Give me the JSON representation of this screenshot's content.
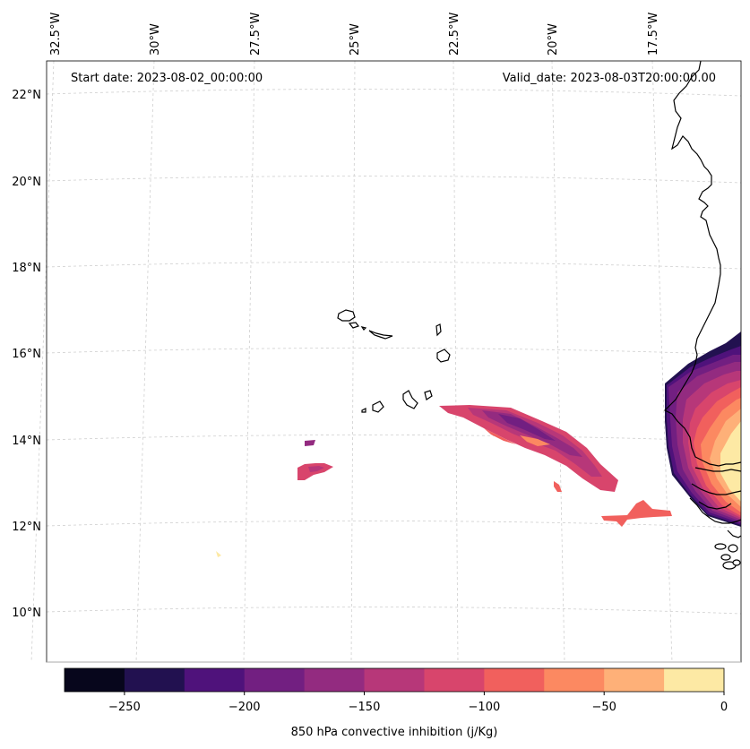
{
  "header": {
    "start_date": "Start date: 2023-08-02_00:00:00",
    "valid_date": "Valid_date: 2023-08-03T20:00:00.00"
  },
  "lon_labels": [
    "32.5°W",
    "30°W",
    "27.5°W",
    "25°W",
    "22.5°W",
    "20°W",
    "17.5°W"
  ],
  "lat_labels": [
    "22°N",
    "20°N",
    "18°N",
    "16°N",
    "14°N",
    "12°N",
    "10°N"
  ],
  "colorbar": {
    "label": "850 hPa convective inhibition (j/Kg)",
    "ticks": [
      "−250",
      "−200",
      "−150",
      "−100",
      "−50",
      "0"
    ],
    "levels": [
      -275,
      -250,
      -225,
      -200,
      -175,
      -150,
      -125,
      -100,
      -75,
      -50,
      -25,
      0
    ],
    "colors": [
      "#07061c",
      "#221150",
      "#4f127b",
      "#721f81",
      "#932b80",
      "#b73779",
      "#d8456c",
      "#f1605d",
      "#fc8961",
      "#feb078",
      "#fde9a4"
    ]
  },
  "map": {
    "extent_lon": [
      -32.5,
      -15.3
    ],
    "extent_lat": [
      9.0,
      22.3
    ],
    "variable": "850 hPa convective inhibition",
    "units": "j/Kg"
  }
}
